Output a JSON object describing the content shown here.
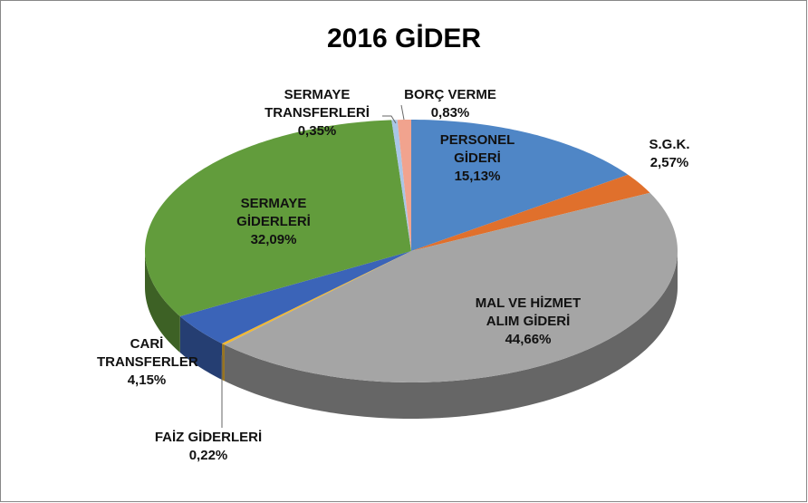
{
  "chart_data": {
    "type": "pie",
    "title": "2016 GİDER",
    "categories": [
      "PERSONEL GİDERİ",
      "S.G.K.",
      "MAL VE HİZMET ALIM GİDERİ",
      "FAİZ GİDERLERİ",
      "CARİ TRANSFERLER",
      "SERMAYE GİDERLERİ",
      "SERMAYE TRANSFERLERİ",
      "BORÇ VERME"
    ],
    "values": [
      15.13,
      2.57,
      44.66,
      0.22,
      4.15,
      32.09,
      0.35,
      0.83
    ],
    "value_labels": [
      "15,13%",
      "2,57%",
      "44,66%",
      "0,22%",
      "4,15%",
      "32,09%",
      "0,35%",
      "0,83%"
    ],
    "colors": [
      "#4f86c6",
      "#e0702c",
      "#a5a5a5",
      "#f2b830",
      "#3b64b8",
      "#629c3c",
      "#a9c6e6",
      "#f1a38e"
    ]
  }
}
